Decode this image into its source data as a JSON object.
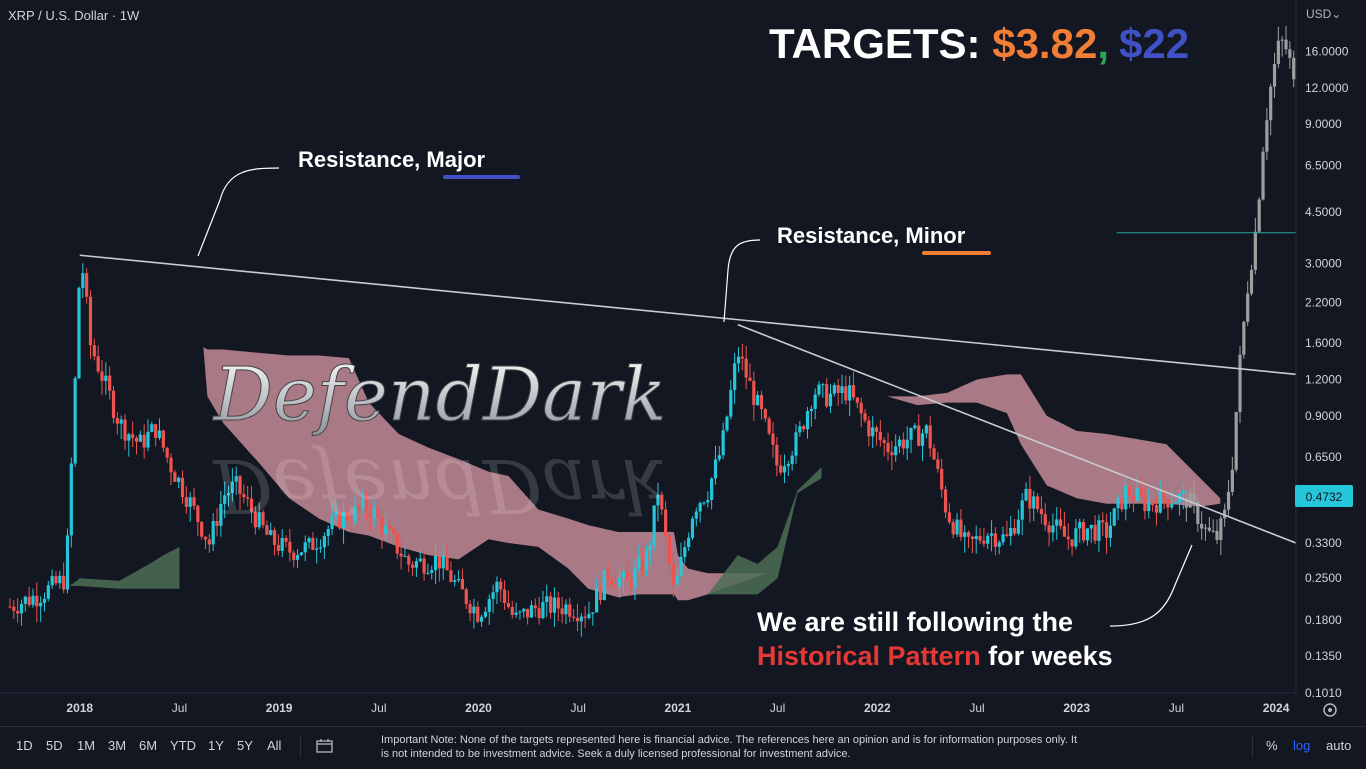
{
  "header": {
    "symbol": "XRP / U.S. Dollar · 1W",
    "currency": "USD"
  },
  "title": {
    "prefix": "TARGETS: ",
    "target1": "$3.82",
    "comma": ",",
    "target2": "$22",
    "colors": {
      "prefix": "#ffffff",
      "target1": "#f27d35",
      "comma": "#26a65b",
      "target2": "#3f51c4"
    }
  },
  "annotations": {
    "major_label": "Resistance, ",
    "major_word": "Major",
    "major_underline_color": "#3f51c4",
    "minor_label": "Resistance, ",
    "minor_word": "Minor",
    "minor_underline_color": "#f27d35",
    "watermark": "DefendDark",
    "pattern_line1": "We are still following the",
    "pattern_highlight": "Historical Pattern",
    "pattern_rest": " for weeks",
    "pattern_highlight_color": "#e53935"
  },
  "price_axis": {
    "ticks": [
      "16.0000",
      "12.0000",
      "9.0000",
      "6.5000",
      "4.5000",
      "3.0000",
      "2.2000",
      "1.6000",
      "1.2000",
      "0.9000",
      "0.6500",
      "0.3300",
      "0.2500",
      "0.1800",
      "0.1350",
      "0.1010"
    ],
    "current_price": "0.4732",
    "current_price_color": "#26c6da"
  },
  "time_axis": {
    "labels": [
      "2018",
      "Jul",
      "2019",
      "Jul",
      "2020",
      "Jul",
      "2021",
      "Jul",
      "2022",
      "Jul",
      "2023",
      "Jul",
      "2024"
    ]
  },
  "toolbar": {
    "timeframes": [
      "1D",
      "5D",
      "1M",
      "3M",
      "6M",
      "YTD",
      "1Y",
      "5Y",
      "All"
    ],
    "note": "Important Note: None of the targets represented here is financial advice. The references here an opinion and is for information purposes only. It is not intended to be investment advice. Seek a duly licensed professional for investment advice.",
    "scale_percent": "%",
    "scale_log": "log",
    "scale_auto": "auto"
  },
  "chart_data": {
    "type": "candlestick",
    "title": "XRP / U.S. Dollar · 1W",
    "ylabel": "USD",
    "scale": "log",
    "ylim": [
      0.101,
      24
    ],
    "x_range": [
      2017.6,
      2024.1
    ],
    "colors": {
      "up": "#26c6da",
      "down": "#ef5350",
      "projection": "#9e9e9e",
      "cloud_bear": "#c48b97",
      "cloud_bull": "#4c6e55"
    },
    "price_path": [
      [
        2017.65,
        0.2
      ],
      [
        2017.8,
        0.22
      ],
      [
        2017.93,
        0.25
      ],
      [
        2017.97,
        0.9
      ],
      [
        2018.0,
        2.9
      ],
      [
        2018.02,
        2.8
      ],
      [
        2018.05,
        1.6
      ],
      [
        2018.1,
        1.3
      ],
      [
        2018.2,
        0.85
      ],
      [
        2018.3,
        0.72
      ],
      [
        2018.38,
        0.82
      ],
      [
        2018.45,
        0.62
      ],
      [
        2018.55,
        0.46
      ],
      [
        2018.65,
        0.33
      ],
      [
        2018.72,
        0.48
      ],
      [
        2018.78,
        0.52
      ],
      [
        2018.85,
        0.44
      ],
      [
        2018.95,
        0.34
      ],
      [
        2019.05,
        0.31
      ],
      [
        2019.15,
        0.32
      ],
      [
        2019.3,
        0.4
      ],
      [
        2019.45,
        0.44
      ],
      [
        2019.55,
        0.35
      ],
      [
        2019.65,
        0.28
      ],
      [
        2019.8,
        0.29
      ],
      [
        2019.9,
        0.23
      ],
      [
        2020.0,
        0.19
      ],
      [
        2020.1,
        0.24
      ],
      [
        2020.18,
        0.18
      ],
      [
        2020.3,
        0.2
      ],
      [
        2020.45,
        0.2
      ],
      [
        2020.55,
        0.19
      ],
      [
        2020.65,
        0.26
      ],
      [
        2020.75,
        0.24
      ],
      [
        2020.85,
        0.3
      ],
      [
        2020.9,
        0.5
      ],
      [
        2020.98,
        0.22
      ],
      [
        2021.08,
        0.44
      ],
      [
        2021.15,
        0.5
      ],
      [
        2021.22,
        0.7
      ],
      [
        2021.3,
        1.5
      ],
      [
        2021.35,
        1.2
      ],
      [
        2021.42,
        0.9
      ],
      [
        2021.5,
        0.6
      ],
      [
        2021.6,
        0.75
      ],
      [
        2021.68,
        1.1
      ],
      [
        2021.75,
        1.05
      ],
      [
        2021.85,
        1.1
      ],
      [
        2021.95,
        0.83
      ],
      [
        2022.05,
        0.7
      ],
      [
        2022.15,
        0.75
      ],
      [
        2022.25,
        0.8
      ],
      [
        2022.35,
        0.42
      ],
      [
        2022.45,
        0.32
      ],
      [
        2022.55,
        0.36
      ],
      [
        2022.65,
        0.34
      ],
      [
        2022.75,
        0.48
      ],
      [
        2022.85,
        0.4
      ],
      [
        2022.95,
        0.34
      ],
      [
        2023.05,
        0.37
      ],
      [
        2023.15,
        0.36
      ],
      [
        2023.25,
        0.5
      ],
      [
        2023.35,
        0.45
      ],
      [
        2023.45,
        0.47
      ],
      [
        2023.55,
        0.4732
      ]
    ],
    "projection_path": [
      [
        2023.55,
        0.47
      ],
      [
        2023.6,
        0.42
      ],
      [
        2023.65,
        0.36
      ],
      [
        2023.7,
        0.34
      ],
      [
        2023.74,
        0.4
      ],
      [
        2023.78,
        0.62
      ],
      [
        2023.82,
        1.4
      ],
      [
        2023.86,
        2.6
      ],
      [
        2023.9,
        4.0
      ],
      [
        2023.94,
        8.5
      ],
      [
        2023.98,
        13.0
      ],
      [
        2024.02,
        17.5
      ],
      [
        2024.06,
        16.0
      ],
      [
        2024.1,
        11.0
      ]
    ],
    "cloud": [
      [
        2018.62,
        1.55,
        1.55
      ],
      [
        2018.64,
        1.52,
        1.05
      ],
      [
        2018.72,
        1.52,
        0.85
      ],
      [
        2018.9,
        1.48,
        0.62
      ],
      [
        2019.05,
        1.45,
        0.47
      ],
      [
        2019.2,
        1.45,
        0.4
      ],
      [
        2019.35,
        1.42,
        0.36
      ],
      [
        2019.45,
        1.0,
        0.35
      ],
      [
        2019.6,
        0.78,
        0.32
      ],
      [
        2019.75,
        0.7,
        0.3
      ],
      [
        2019.9,
        0.64,
        0.29
      ],
      [
        2020.05,
        0.58,
        0.34
      ],
      [
        2020.15,
        0.56,
        0.33
      ],
      [
        2020.3,
        0.43,
        0.32
      ],
      [
        2020.45,
        0.4,
        0.27
      ],
      [
        2020.55,
        0.38,
        0.23
      ],
      [
        2020.7,
        0.36,
        0.215
      ],
      [
        2020.8,
        0.36,
        0.22
      ],
      [
        2020.98,
        0.36,
        0.22
      ],
      [
        2021.0,
        0.3,
        0.21
      ],
      [
        2021.05,
        0.27,
        0.21
      ],
      [
        2021.15,
        0.26,
        0.22
      ],
      [
        2021.3,
        0.26,
        0.24
      ],
      [
        2021.45,
        0.26,
        0.26
      ],
      [
        2021.5,
        0.27,
        0.27
      ]
    ],
    "cloud2": [
      [
        2022.05,
        1.05,
        1.05
      ],
      [
        2022.2,
        1.05,
        0.98
      ],
      [
        2022.35,
        1.08,
        1.0
      ],
      [
        2022.5,
        1.2,
        1.0
      ],
      [
        2022.65,
        1.25,
        0.92
      ],
      [
        2022.72,
        1.25,
        0.72
      ],
      [
        2022.85,
        0.9,
        0.52
      ],
      [
        2023.0,
        0.8,
        0.47
      ],
      [
        2023.15,
        0.78,
        0.45
      ],
      [
        2023.3,
        0.75,
        0.45
      ],
      [
        2023.45,
        0.72,
        0.45
      ],
      [
        2023.62,
        0.55,
        0.44
      ],
      [
        2023.72,
        0.47,
        0.45
      ]
    ],
    "bull_cloud": [
      [
        2017.95,
        0.235,
        0.235
      ],
      [
        2018.0,
        0.235,
        0.25
      ],
      [
        2018.2,
        0.23,
        0.245
      ],
      [
        2018.35,
        0.23,
        0.28
      ],
      [
        2018.42,
        0.23,
        0.3
      ],
      [
        2018.5,
        0.23,
        0.32
      ]
    ],
    "bull_cloud2": [
      [
        2021.15,
        0.22,
        0.22
      ],
      [
        2021.3,
        0.22,
        0.3
      ],
      [
        2021.4,
        0.22,
        0.28
      ],
      [
        2021.5,
        0.25,
        0.32
      ],
      [
        2021.6,
        0.49,
        0.5
      ],
      [
        2021.72,
        0.55,
        0.6
      ]
    ],
    "resistance_major": [
      [
        2018.0,
        3.2
      ],
      [
        2024.1,
        1.25
      ]
    ],
    "resistance_minor": [
      [
        2021.3,
        1.85
      ],
      [
        2024.1,
        0.33
      ]
    ],
    "target_line": {
      "x_start": 2023.2,
      "price": 3.82,
      "color": "#26a69a"
    }
  }
}
